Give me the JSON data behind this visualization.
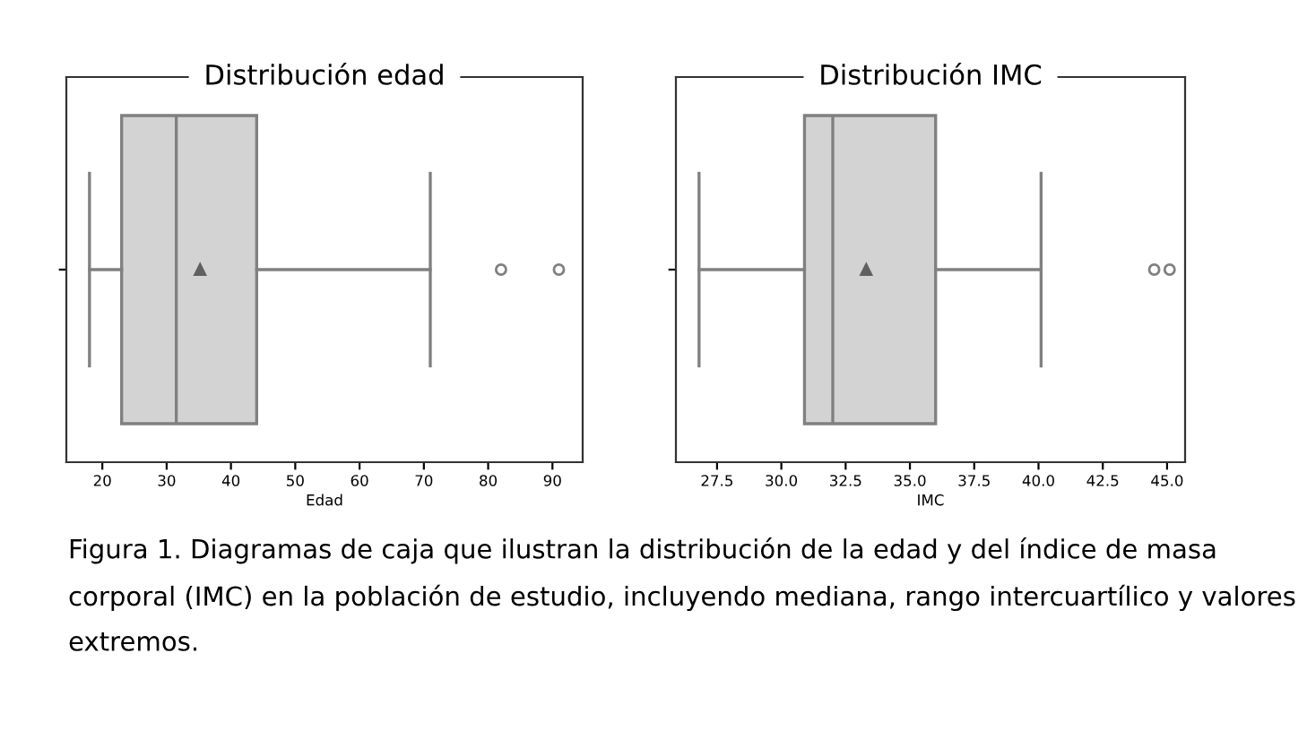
{
  "chart_data": [
    {
      "type": "box",
      "title": "Distribución edad",
      "xlabel": "Edad",
      "orientation": "horizontal",
      "categories": [
        null
      ],
      "color": "#d3d3d3",
      "boxes": [
        {
          "low": 18,
          "q1": 23,
          "median": 31.5,
          "q3": 44,
          "high": 71,
          "mean": 35.2,
          "outliers": [
            82,
            91
          ]
        }
      ],
      "xlim": [
        14.4,
        94.7
      ],
      "xticks": [
        20,
        30,
        40,
        50,
        60,
        70,
        80,
        90
      ],
      "tick_labels": "x",
      "grid": false,
      "legend": false
    },
    {
      "type": "box",
      "title": "Distribución IMC",
      "xlabel": "IMC",
      "orientation": "horizontal",
      "categories": [
        null
      ],
      "color": "#d3d3d3",
      "boxes": [
        {
          "low": 26.8,
          "q1": 30.9,
          "median": 32.0,
          "q3": 36.0,
          "high": 40.1,
          "mean": 33.3,
          "outliers": [
            44.5,
            45.1
          ]
        }
      ],
      "xlim": [
        25.9,
        45.7
      ],
      "xticks": [
        {
          "value": 27.5,
          "label": "27.5"
        },
        {
          "value": 30,
          "label": "30.0"
        },
        {
          "value": 32.5,
          "label": "32.5"
        },
        {
          "value": 35,
          "label": "35.0"
        },
        {
          "value": 37.5,
          "label": "37.5"
        },
        {
          "value": 40,
          "label": "40.0"
        },
        {
          "value": 42.5,
          "label": "42.5"
        },
        {
          "value": 45,
          "label": "45.0"
        }
      ],
      "tick_labels": "x",
      "grid": false,
      "legend": false,
      "annotations": [
        "Figura 1. Diagramas de caja que ilustran la distribución de la edad y del índice de masa corporal (IMC) en la población de estudio, incluyendo mediana, rango intercuartílico y valores extremos."
      ]
    }
  ]
}
